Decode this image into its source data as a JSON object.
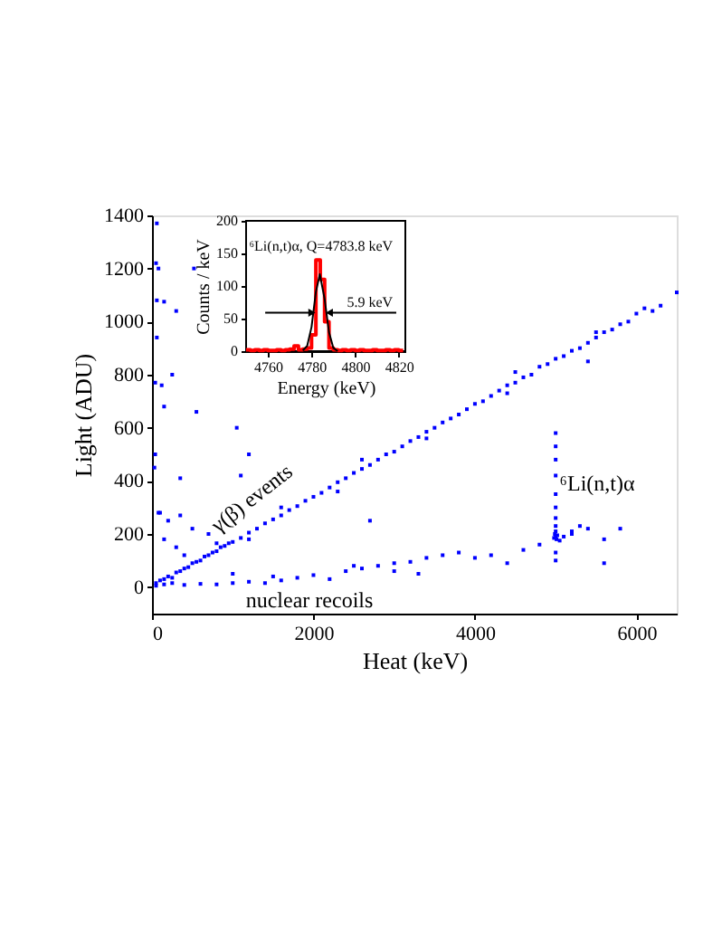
{
  "chart_data": [
    {
      "type": "scatter",
      "xlabel": "Heat (keV)",
      "ylabel": "Light (ADU)",
      "xlim": [
        0,
        6500
      ],
      "ylim": [
        -100,
        1400
      ],
      "xticks": [
        0,
        2000,
        4000,
        6000
      ],
      "yticks": [
        0,
        200,
        400,
        600,
        800,
        1000,
        1200,
        1400
      ],
      "marker": "square",
      "grid": false,
      "series": [
        {
          "color": "#0000ff",
          "x": [
            50,
            100,
            150,
            200,
            250,
            300,
            350,
            400,
            450,
            500,
            550,
            600,
            650,
            700,
            750,
            800,
            850,
            900,
            950,
            1000,
            1100,
            1200,
            1300,
            1400,
            1500,
            1600,
            1700,
            1800,
            1900,
            2000,
            2100,
            2200,
            2300,
            2400,
            2500,
            2600,
            2700,
            2800,
            2900,
            3000,
            3100,
            3200,
            3300,
            3400,
            3500,
            3600,
            3700,
            3800,
            3900,
            4000,
            4100,
            4200,
            4300,
            4400,
            4500,
            4600,
            4700,
            4800,
            4900,
            5000,
            5100,
            5200,
            5300,
            5400,
            5500,
            5600,
            5700,
            5800,
            5900,
            6000,
            6100,
            6200,
            6300,
            6500,
            800,
            1200,
            1600,
            2300,
            2600,
            3400,
            4400,
            5400,
            4500,
            5500,
            300,
            200,
            150,
            400,
            500,
            700,
            350,
            100,
            1100,
            2700,
            1000,
            1500,
            2500,
            3000,
            50,
            150,
            250,
            400,
            600,
            800,
            1000,
            1200,
            1400,
            1600,
            1800,
            2000,
            2200,
            2400,
            2600,
            2800,
            3000,
            3200,
            3400,
            3600,
            3800,
            4000,
            4200,
            4400,
            4600,
            4800,
            5200,
            5400,
            5600,
            5800,
            5600,
            3300,
            5000,
            4990,
            5010,
            5000,
            5020,
            4980,
            5000,
            5000,
            5000,
            5000,
            5000,
            5000,
            5000,
            5000,
            5000,
            5000,
            5100,
            5200,
            5300,
            5050,
            60,
            50,
            80,
            60,
            150,
            300,
            520,
            60,
            250,
            40,
            120,
            150,
            550,
            1050,
            40,
            30,
            350,
            80,
            1200
          ],
          "values": [
            15,
            25,
            30,
            40,
            35,
            55,
            60,
            70,
            75,
            90,
            95,
            100,
            115,
            120,
            130,
            135,
            150,
            155,
            165,
            170,
            185,
            205,
            220,
            240,
            255,
            270,
            290,
            305,
            325,
            340,
            355,
            375,
            395,
            410,
            430,
            445,
            460,
            480,
            500,
            510,
            530,
            550,
            565,
            585,
            600,
            620,
            635,
            650,
            670,
            690,
            700,
            720,
            740,
            760,
            770,
            790,
            800,
            830,
            840,
            860,
            870,
            890,
            900,
            920,
            940,
            960,
            970,
            990,
            1000,
            1030,
            1050,
            1040,
            1060,
            1110,
            165,
            180,
            300,
            360,
            480,
            560,
            730,
            850,
            810,
            960,
            150,
            250,
            180,
            120,
            220,
            200,
            270,
            280,
            420,
            250,
            50,
            40,
            80,
            60,
            5,
            10,
            15,
            8,
            12,
            10,
            15,
            20,
            15,
            25,
            35,
            45,
            30,
            60,
            70,
            80,
            90,
            95,
            110,
            120,
            130,
            110,
            120,
            90,
            140,
            160,
            210,
            220,
            180,
            220,
            90,
            50,
            190,
            200,
            180,
            210,
            195,
            185,
            230,
            260,
            300,
            350,
            420,
            480,
            530,
            580,
            130,
            100,
            190,
            200,
            230,
            175,
            1370,
            1220,
            1200,
            1080,
            1075,
            1040,
            1200,
            940,
            800,
            770,
            760,
            680,
            660,
            600,
            500,
            450,
            410,
            280,
            500
          ]
        }
      ],
      "annotations": [
        "γ(β) events",
        "nuclear recoils",
        {
          "text": "⁶Li(n,t)α",
          "x": 5050,
          "y": 390
        }
      ]
    },
    {
      "type": "histogram",
      "xlabel": "Energy (keV)",
      "ylabel": "Counts / keV",
      "xlim": [
        4750,
        4823
      ],
      "ylim": [
        0,
        200
      ],
      "xticks": [
        4760,
        4780,
        4800,
        4820
      ],
      "yticks": [
        0,
        50,
        100,
        150,
        200
      ],
      "grid": false,
      "series": [
        {
          "type": "histogram",
          "color": "#ff0000",
          "bins": [
            4750,
            4752,
            4754,
            4756,
            4758,
            4760,
            4762,
            4764,
            4766,
            4768,
            4770,
            4772,
            4774,
            4776,
            4778,
            4780,
            4782,
            4784,
            4786,
            4788,
            4790,
            4792,
            4794,
            4796,
            4798,
            4800,
            4802,
            4804,
            4806,
            4808,
            4810,
            4812,
            4814,
            4816,
            4818,
            4820,
            4822
          ],
          "values": [
            2,
            1,
            2,
            1,
            2,
            1,
            1,
            2,
            1,
            2,
            3,
            8,
            2,
            3,
            5,
            25,
            140,
            110,
            45,
            5,
            2,
            1,
            2,
            1,
            2,
            1,
            2,
            1,
            1,
            2,
            1,
            1,
            2,
            1,
            2,
            1
          ]
        },
        {
          "type": "line",
          "color": "#000000",
          "line_style": "solid",
          "x": [
            4776,
            4778,
            4780,
            4782,
            4783.8,
            4786,
            4788,
            4790,
            4792
          ],
          "values": [
            1,
            8,
            37,
            91,
            118,
            80,
            29,
            5,
            0
          ]
        }
      ],
      "annotations": [
        "⁶Li(n,t)α, Q=4783.8 keV",
        "5.9 keV"
      ]
    }
  ]
}
